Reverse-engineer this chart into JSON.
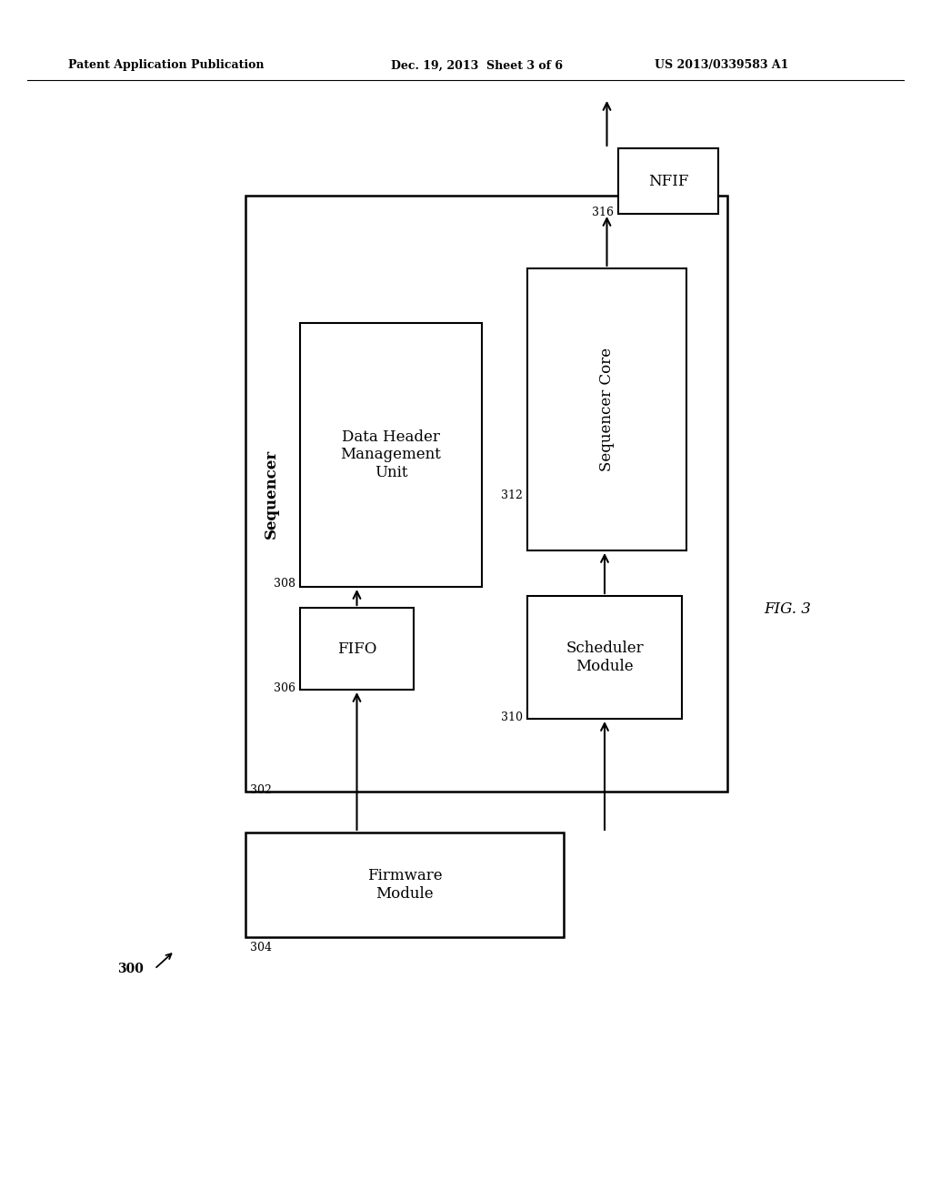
{
  "bg_color": "#ffffff",
  "header_left": "Patent Application Publication",
  "header_mid": "Dec. 19, 2013  Sheet 3 of 6",
  "header_right": "US 2013/0339583 A1",
  "fig_label": "FIG. 3",
  "diagram_ref": "300",
  "sequencer_label": "Sequencer",
  "sequencer_ref": "302",
  "boxes": {
    "firmware": {
      "label": "Firmware\nModule",
      "ref": "304"
    },
    "fifo": {
      "label": "FIFO",
      "ref": "306"
    },
    "dhmu": {
      "label": "Data Header\nManagement\nUnit",
      "ref": "308"
    },
    "scheduler": {
      "label": "Scheduler\nModule",
      "ref": "310"
    },
    "seq_core": {
      "label": "Sequencer Core",
      "ref": "312"
    },
    "nfif": {
      "label": "NFIF",
      "ref": "316"
    }
  }
}
